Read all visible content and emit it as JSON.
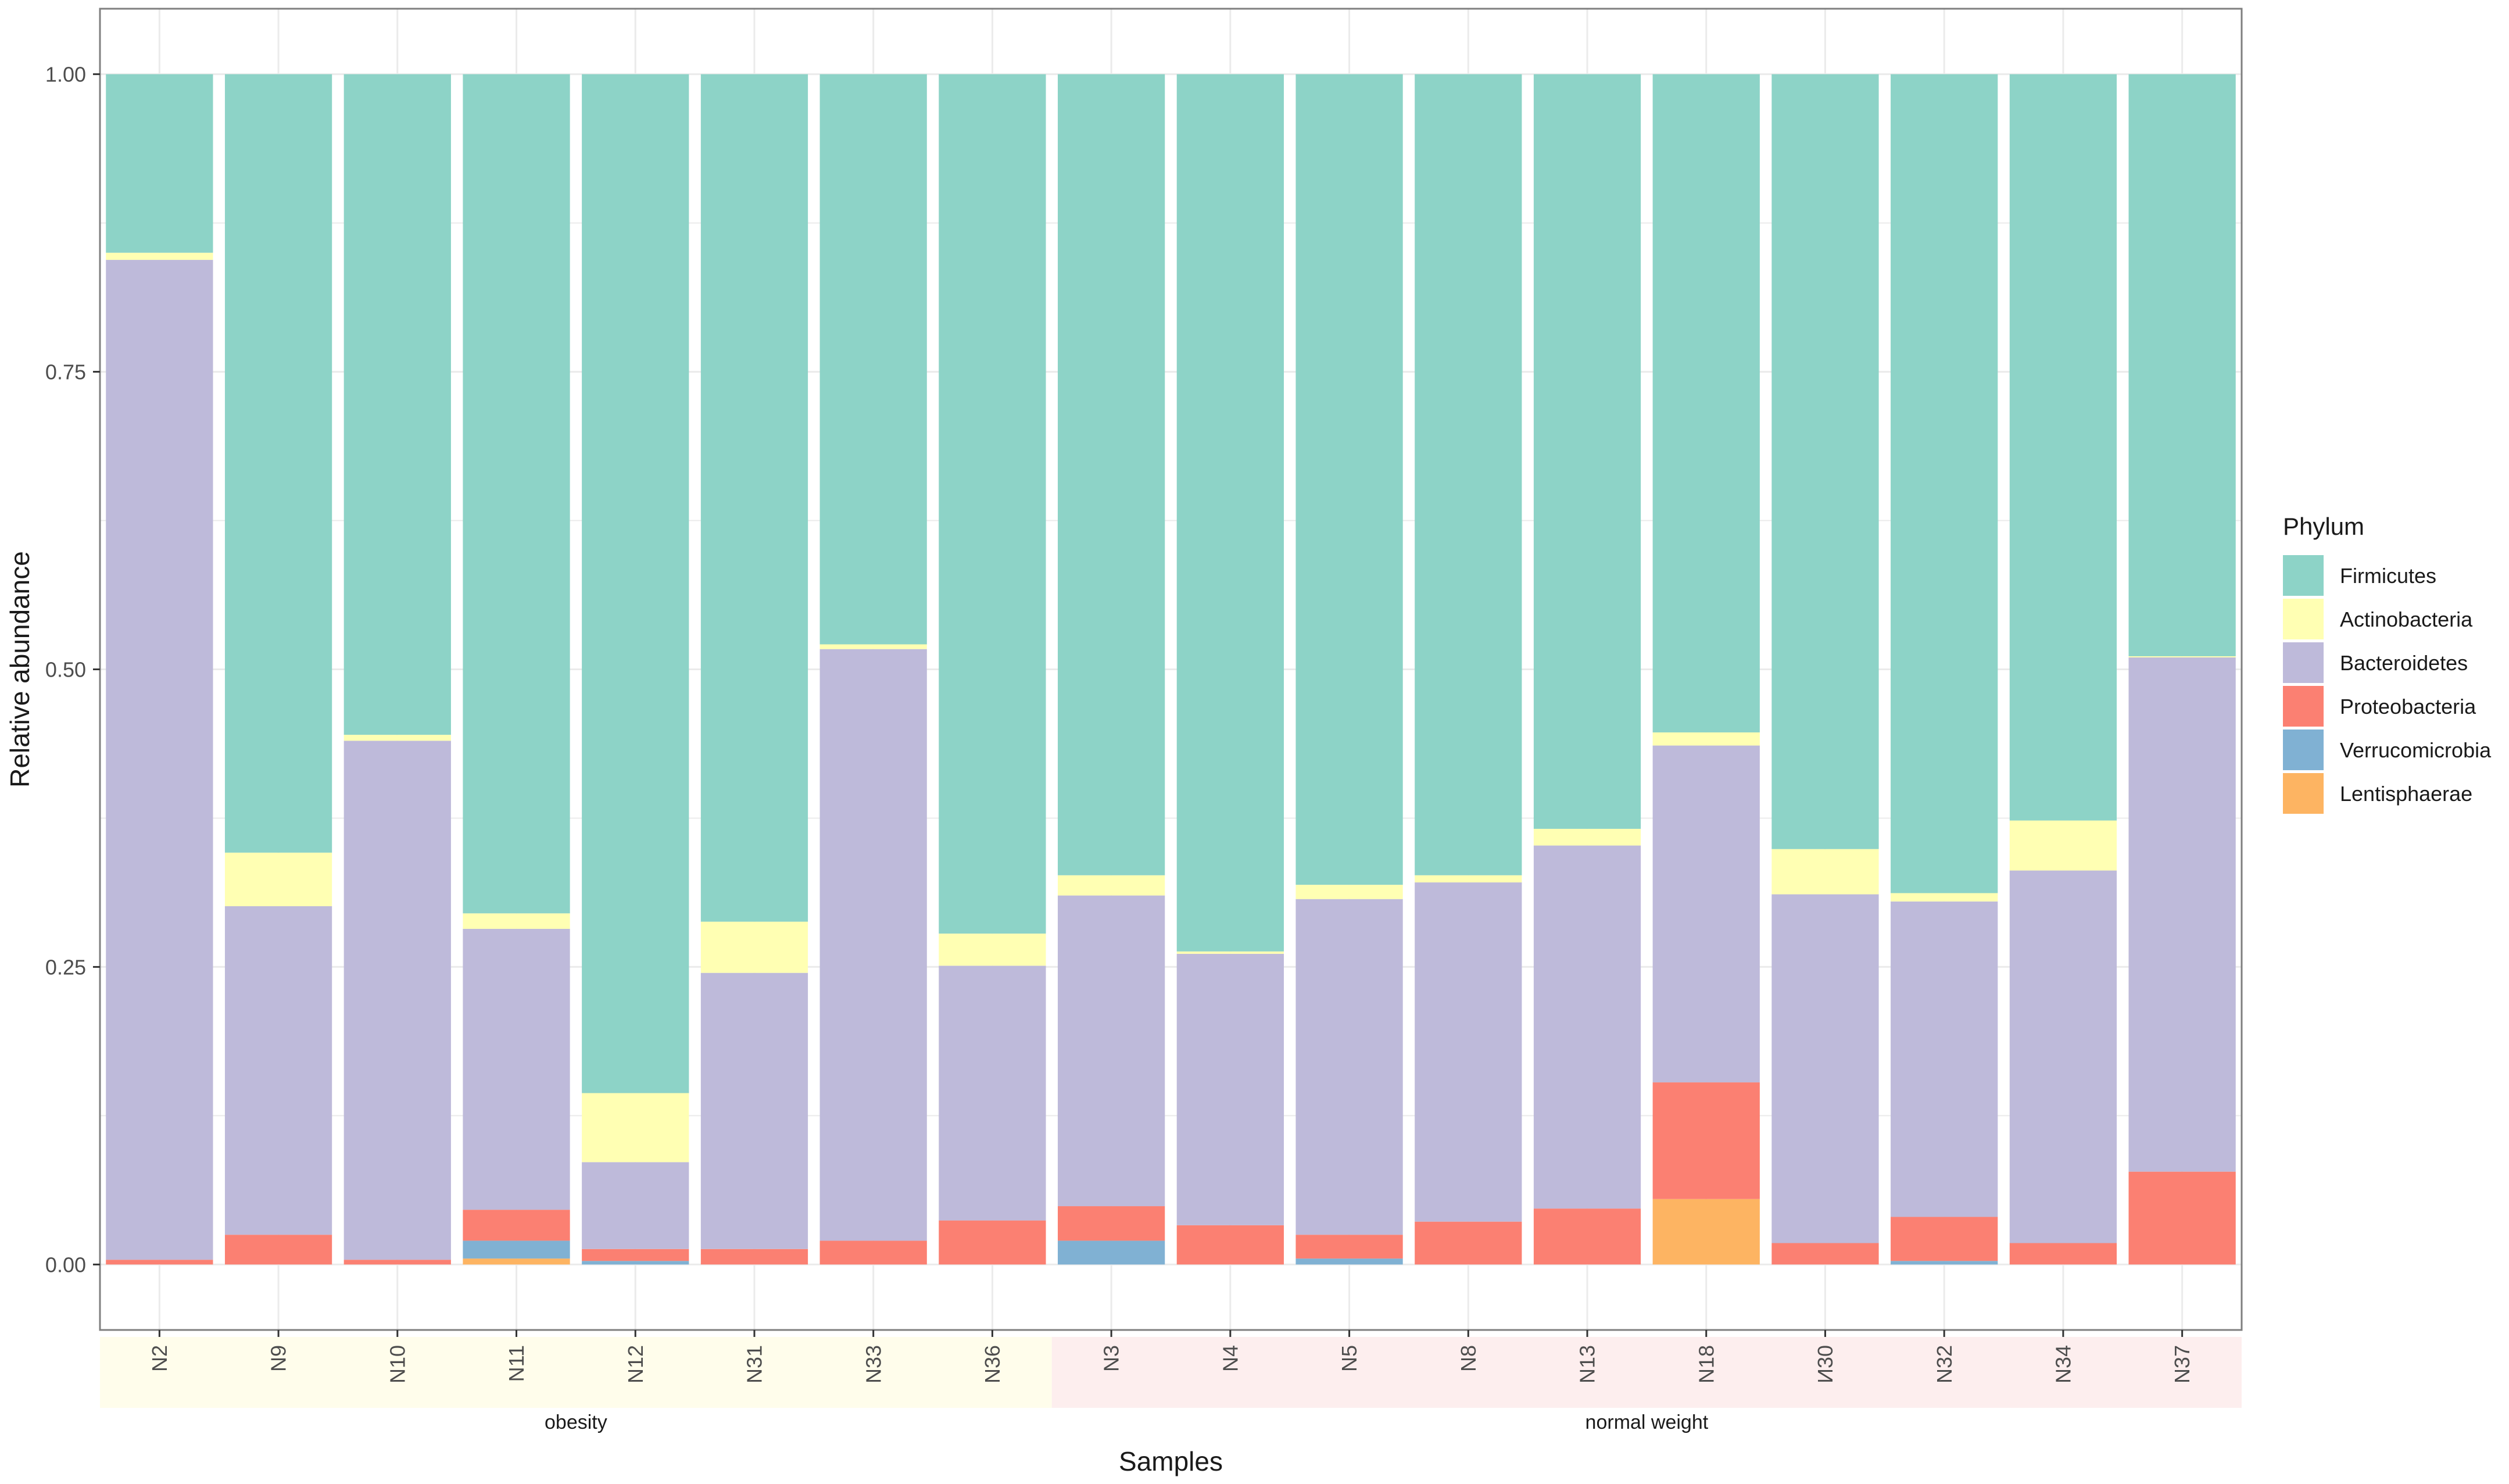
{
  "colors": {
    "Firmicutes": "#8dd3c7",
    "Actinobacteria": "#ffffb3",
    "Bacteroidetes": "#bebada",
    "Proteobacteria": "#fb8072",
    "Verrucomicrobia": "#80b1d3",
    "Lentisphaerae": "#fdb462",
    "group_obesity": "#fffdeb",
    "group_normal": "#fdeeee",
    "grid": "#ebebeb",
    "panel_border": "#7f7f7f",
    "text": "#1a1a1a",
    "axis_text": "#4d4d4d"
  },
  "chart_data": {
    "type": "bar",
    "stacked": true,
    "title": "",
    "xlabel": "Samples",
    "ylabel": "Relative abundance",
    "ylim": [
      0,
      1
    ],
    "yticks": [
      "0.00",
      "0.25",
      "0.50",
      "0.75",
      "1.00"
    ],
    "ytick_values": [
      0,
      0.25,
      0.5,
      0.75,
      1.0
    ],
    "legend": {
      "title": "Phylum",
      "position": "right",
      "entries": [
        "Firmicutes",
        "Actinobacteria",
        "Bacteroidetes",
        "Proteobacteria",
        "Verrucomicrobia",
        "Lentisphaerae"
      ]
    },
    "groups": [
      {
        "label": "obesity",
        "samples": [
          "N2",
          "N9",
          "N10",
          "N11",
          "N12",
          "N31",
          "N33",
          "N36"
        ]
      },
      {
        "label": "normal weight",
        "samples": [
          "N3",
          "N4",
          "N5",
          "N8",
          "N13",
          "N18",
          "И30",
          "N32",
          "N34",
          "N37"
        ]
      }
    ],
    "categories": [
      "N2",
      "N9",
      "N10",
      "N11",
      "N12",
      "N31",
      "N33",
      "N36",
      "N3",
      "N4",
      "N5",
      "N8",
      "N13",
      "N18",
      "И30",
      "N32",
      "N34",
      "N37"
    ],
    "series": [
      {
        "name": "Lentisphaerae",
        "values": [
          0,
          0,
          0,
          0.005,
          0,
          0,
          0,
          0,
          0,
          0,
          0,
          0,
          0,
          0.055,
          0,
          0,
          0,
          0
        ]
      },
      {
        "name": "Verrucomicrobia",
        "values": [
          0,
          0,
          0,
          0.015,
          0.003,
          0,
          0,
          0,
          0.02,
          0,
          0.005,
          0,
          0,
          0,
          0,
          0.003,
          0,
          0
        ]
      },
      {
        "name": "Proteobacteria",
        "values": [
          0.004,
          0.025,
          0.004,
          0.026,
          0.01,
          0.013,
          0.02,
          0.037,
          0.029,
          0.033,
          0.02,
          0.036,
          0.047,
          0.098,
          0.018,
          0.037,
          0.018,
          0.078
        ]
      },
      {
        "name": "Bacteroidetes",
        "values": [
          0.84,
          0.276,
          0.436,
          0.236,
          0.073,
          0.232,
          0.497,
          0.214,
          0.261,
          0.228,
          0.282,
          0.285,
          0.305,
          0.283,
          0.293,
          0.265,
          0.313,
          0.432
        ]
      },
      {
        "name": "Actinobacteria",
        "values": [
          0.006,
          0.045,
          0.005,
          0.013,
          0.058,
          0.043,
          0.004,
          0.027,
          0.017,
          0.002,
          0.012,
          0.006,
          0.014,
          0.011,
          0.038,
          0.007,
          0.042,
          0.001
        ]
      },
      {
        "name": "Firmicutes",
        "values": [
          0.15,
          0.654,
          0.555,
          0.705,
          0.856,
          0.712,
          0.479,
          0.722,
          0.673,
          0.737,
          0.681,
          0.673,
          0.634,
          0.553,
          0.651,
          0.688,
          0.627,
          0.489
        ]
      }
    ]
  }
}
